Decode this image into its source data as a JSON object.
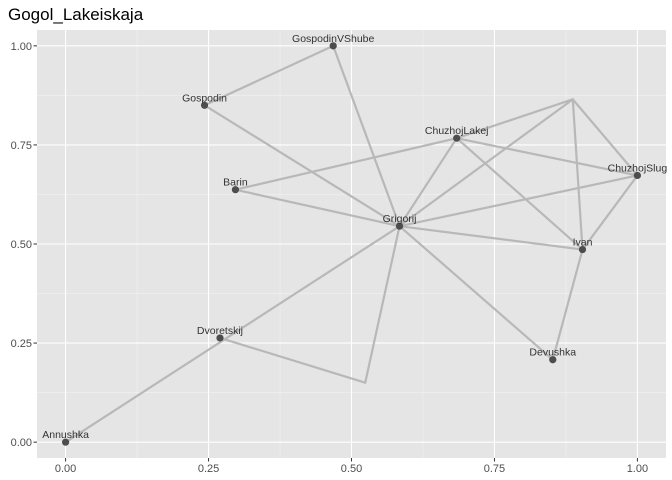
{
  "chart_data": {
    "type": "network",
    "title": "Gogol_Lakeiskaja",
    "xlabel": "",
    "ylabel": "",
    "xlim": [
      -0.05,
      1.05
    ],
    "ylim": [
      -0.04,
      1.04
    ],
    "x_ticks": [
      0.0,
      0.25,
      0.5,
      0.75,
      1.0
    ],
    "x_tick_labels": [
      "0.00",
      "0.25",
      "0.50",
      "0.75",
      "1.00"
    ],
    "y_ticks": [
      0.0,
      0.25,
      0.5,
      0.75,
      1.0
    ],
    "y_tick_labels": [
      "0.00",
      "0.25",
      "0.50",
      "0.75",
      "1.00"
    ],
    "grid": true,
    "background": "#e5e5e5",
    "edge_color": "#b8b8b8",
    "node_color": "#4d4d4d",
    "nodes": [
      {
        "id": "Annushka",
        "label": "Annushka",
        "x": 0.0,
        "y": 0.0
      },
      {
        "id": "Dvoretskij",
        "label": "Dvoretskij",
        "x": 0.27,
        "y": 0.263
      },
      {
        "id": "Barin",
        "label": "Barin",
        "x": 0.297,
        "y": 0.637
      },
      {
        "id": "Gospodin",
        "label": "Gospodin",
        "x": 0.243,
        "y": 0.85
      },
      {
        "id": "GospodinVShube",
        "label": "GospodinVShube",
        "x": 0.468,
        "y": 1.0
      },
      {
        "id": "Grigorij",
        "label": "Grigorij",
        "x": 0.584,
        "y": 0.545
      },
      {
        "id": "ChuzhojLakej",
        "label": "ChuzhojLakej",
        "x": 0.684,
        "y": 0.767
      },
      {
        "id": "Devushka",
        "label": "Devushka",
        "x": 0.852,
        "y": 0.208
      },
      {
        "id": "Ivan",
        "label": "Ivan",
        "x": 0.904,
        "y": 0.486
      },
      {
        "id": "ChuzhojSlug",
        "label": "ChuzhojSlug",
        "x": 1.0,
        "y": 0.673
      }
    ],
    "bend_points": [
      {
        "id": "b1",
        "x": 0.524,
        "y": 0.15
      },
      {
        "id": "b2",
        "x": 0.887,
        "y": 0.865
      }
    ],
    "edges": [
      [
        "Annushka",
        "Grigorij"
      ],
      [
        "Dvoretskij",
        "b1"
      ],
      [
        "b1",
        "Grigorij"
      ],
      [
        "Gospodin",
        "Grigorij"
      ],
      [
        "GospodinVShube",
        "Gospodin"
      ],
      [
        "GospodinVShube",
        "Grigorij"
      ],
      [
        "Barin",
        "ChuzhojLakej"
      ],
      [
        "Barin",
        "Grigorij"
      ],
      [
        "Grigorij",
        "ChuzhojLakej"
      ],
      [
        "Grigorij",
        "ChuzhojSlug"
      ],
      [
        "Grigorij",
        "Ivan"
      ],
      [
        "Grigorij",
        "Devushka"
      ],
      [
        "Grigorij",
        "b2"
      ],
      [
        "ChuzhojLakej",
        "b2"
      ],
      [
        "ChuzhojLakej",
        "Ivan"
      ],
      [
        "ChuzhojLakej",
        "ChuzhojSlug"
      ],
      [
        "b2",
        "ChuzhojSlug"
      ],
      [
        "b2",
        "Ivan"
      ],
      [
        "Ivan",
        "ChuzhojSlug"
      ],
      [
        "Ivan",
        "Devushka"
      ]
    ]
  }
}
